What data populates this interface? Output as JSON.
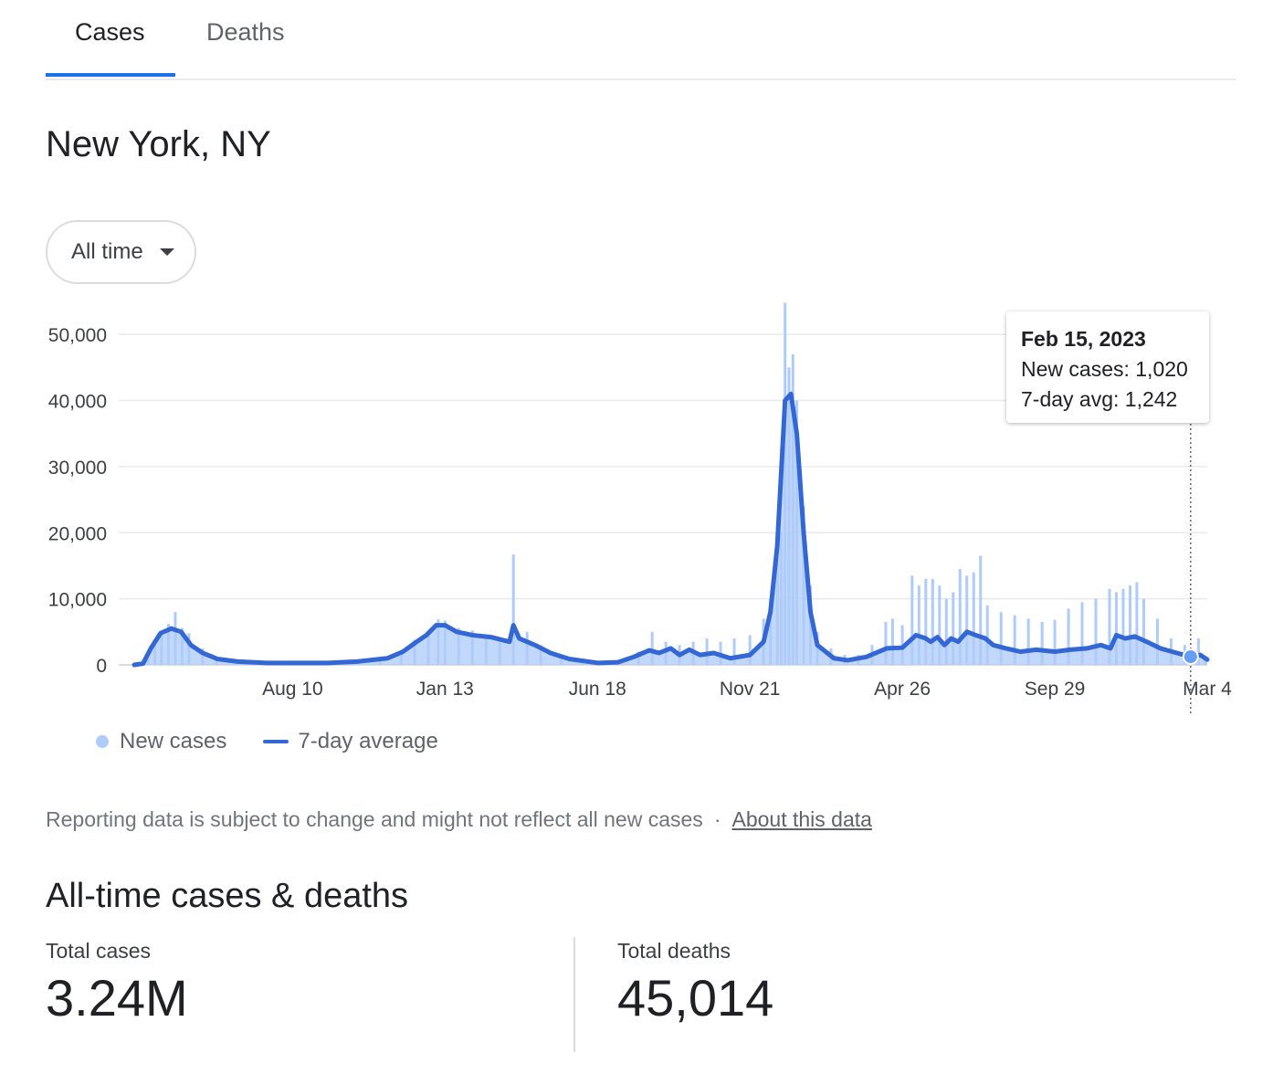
{
  "tabs": [
    {
      "label": "Cases",
      "active": true
    },
    {
      "label": "Deaths",
      "active": false
    }
  ],
  "location": "New York, NY",
  "range_selector": {
    "selected": "All time"
  },
  "legend": {
    "new_cases": "New cases",
    "avg": "7-day average"
  },
  "tooltip": {
    "date": "Feb 15, 2023",
    "new_cases": "New cases: 1,020",
    "avg": "7-day avg: 1,242"
  },
  "note": {
    "text": "Reporting data is subject to change and might not reflect all new cases",
    "separator": "·",
    "link": "About this data"
  },
  "all_time": {
    "title": "All-time cases & deaths",
    "total_cases_label": "Total cases",
    "total_cases_value": "3.24M",
    "total_deaths_label": "Total deaths",
    "total_deaths_value": "45,014"
  },
  "colors": {
    "bars": "#aecbfa",
    "line": "#3367d6",
    "active_tab": "#1a73e8",
    "gridline": "#e8eaed"
  },
  "chart_data": {
    "type": "bar",
    "overlay": "line",
    "x_range": [
      "2020-03-01",
      "2023-03-04"
    ],
    "ylim": [
      0,
      55000
    ],
    "grid": true,
    "y_ticks": [
      {
        "value": 0,
        "label": "0"
      },
      {
        "value": 10000,
        "label": "10,000"
      },
      {
        "value": 20000,
        "label": "20,000"
      },
      {
        "value": 30000,
        "label": "30,000"
      },
      {
        "value": 40000,
        "label": "40,000"
      },
      {
        "value": 50000,
        "label": "50,000"
      }
    ],
    "x_ticks": [
      {
        "date": "2020-08-10",
        "label": "Aug 10"
      },
      {
        "date": "2021-01-13",
        "label": "Jan 13"
      },
      {
        "date": "2021-06-18",
        "label": "Jun 18"
      },
      {
        "date": "2021-11-21",
        "label": "Nov 21"
      },
      {
        "date": "2022-04-26",
        "label": "Apr 26"
      },
      {
        "date": "2022-09-29",
        "label": "Sep 29"
      },
      {
        "date": "2023-03-04",
        "label": "Mar 4"
      }
    ],
    "series": [
      {
        "name": "New cases",
        "kind": "bar",
        "points": [
          [
            "2020-03-15",
            800
          ],
          [
            "2020-03-22",
            3500
          ],
          [
            "2020-03-29",
            5200
          ],
          [
            "2020-04-05",
            6200
          ],
          [
            "2020-04-12",
            8000
          ],
          [
            "2020-04-19",
            5600
          ],
          [
            "2020-04-26",
            4800
          ],
          [
            "2020-05-10",
            2500
          ],
          [
            "2020-05-24",
            1300
          ],
          [
            "2020-06-14",
            700
          ],
          [
            "2020-07-12",
            400
          ],
          [
            "2020-08-10",
            350
          ],
          [
            "2020-09-13",
            400
          ],
          [
            "2020-10-11",
            600
          ],
          [
            "2020-11-08",
            1200
          ],
          [
            "2020-11-29",
            2200
          ],
          [
            "2020-12-13",
            3800
          ],
          [
            "2020-12-27",
            5000
          ],
          [
            "2021-01-06",
            6900
          ],
          [
            "2021-01-13",
            6700
          ],
          [
            "2021-01-27",
            5600
          ],
          [
            "2021-02-10",
            5200
          ],
          [
            "2021-02-24",
            4500
          ],
          [
            "2021-03-10",
            4000
          ],
          [
            "2021-03-24",
            16700
          ],
          [
            "2021-04-07",
            5000
          ],
          [
            "2021-04-21",
            3000
          ],
          [
            "2021-05-12",
            1200
          ],
          [
            "2021-06-02",
            600
          ],
          [
            "2021-06-18",
            300
          ],
          [
            "2021-07-09",
            500
          ],
          [
            "2021-07-30",
            2000
          ],
          [
            "2021-08-13",
            5000
          ],
          [
            "2021-08-27",
            3500
          ],
          [
            "2021-09-10",
            3000
          ],
          [
            "2021-09-24",
            3500
          ],
          [
            "2021-10-08",
            4000
          ],
          [
            "2021-10-22",
            3500
          ],
          [
            "2021-11-05",
            4000
          ],
          [
            "2021-11-21",
            4500
          ],
          [
            "2021-12-05",
            7000
          ],
          [
            "2021-12-12",
            10000
          ],
          [
            "2021-12-19",
            18000
          ],
          [
            "2021-12-23",
            20000
          ],
          [
            "2021-12-27",
            54800
          ],
          [
            "2021-12-31",
            45000
          ],
          [
            "2022-01-04",
            47000
          ],
          [
            "2022-01-08",
            40000
          ],
          [
            "2022-01-15",
            24000
          ],
          [
            "2022-01-22",
            12000
          ],
          [
            "2022-01-29",
            5000
          ],
          [
            "2022-02-12",
            2500
          ],
          [
            "2022-02-26",
            1500
          ],
          [
            "2022-03-12",
            1500
          ],
          [
            "2022-03-26",
            3000
          ],
          [
            "2022-04-09",
            6500
          ],
          [
            "2022-04-16",
            7000
          ],
          [
            "2022-04-26",
            6000
          ],
          [
            "2022-05-06",
            13500
          ],
          [
            "2022-05-13",
            12000
          ],
          [
            "2022-05-20",
            13000
          ],
          [
            "2022-05-27",
            13000
          ],
          [
            "2022-06-03",
            12000
          ],
          [
            "2022-06-10",
            10000
          ],
          [
            "2022-06-17",
            11000
          ],
          [
            "2022-06-24",
            14500
          ],
          [
            "2022-07-01",
            13500
          ],
          [
            "2022-07-08",
            14000
          ],
          [
            "2022-07-15",
            16500
          ],
          [
            "2022-07-22",
            9000
          ],
          [
            "2022-08-05",
            8000
          ],
          [
            "2022-08-19",
            7500
          ],
          [
            "2022-09-02",
            7000
          ],
          [
            "2022-09-16",
            6500
          ],
          [
            "2022-09-29",
            6800
          ],
          [
            "2022-10-13",
            8500
          ],
          [
            "2022-10-27",
            9500
          ],
          [
            "2022-11-10",
            10000
          ],
          [
            "2022-11-24",
            11500
          ],
          [
            "2022-12-01",
            11000
          ],
          [
            "2022-12-08",
            11500
          ],
          [
            "2022-12-15",
            12000
          ],
          [
            "2022-12-22",
            12500
          ],
          [
            "2022-12-29",
            10000
          ],
          [
            "2023-01-12",
            7000
          ],
          [
            "2023-01-26",
            4000
          ],
          [
            "2023-02-09",
            3000
          ],
          [
            "2023-02-15",
            1020
          ],
          [
            "2023-02-23",
            4000
          ],
          [
            "2023-03-02",
            1000
          ]
        ]
      },
      {
        "name": "7-day average",
        "kind": "line",
        "points": [
          [
            "2020-03-01",
            0
          ],
          [
            "2020-03-10",
            200
          ],
          [
            "2020-03-18",
            2500
          ],
          [
            "2020-03-28",
            4800
          ],
          [
            "2020-04-08",
            5500
          ],
          [
            "2020-04-18",
            5000
          ],
          [
            "2020-04-28",
            3000
          ],
          [
            "2020-05-10",
            1800
          ],
          [
            "2020-05-25",
            900
          ],
          [
            "2020-06-15",
            500
          ],
          [
            "2020-07-15",
            300
          ],
          [
            "2020-08-10",
            300
          ],
          [
            "2020-09-15",
            300
          ],
          [
            "2020-10-15",
            500
          ],
          [
            "2020-11-15",
            1000
          ],
          [
            "2020-12-01",
            2000
          ],
          [
            "2020-12-15",
            3500
          ],
          [
            "2020-12-25",
            4500
          ],
          [
            "2021-01-04",
            6000
          ],
          [
            "2021-01-13",
            6000
          ],
          [
            "2021-01-25",
            5000
          ],
          [
            "2021-02-10",
            4500
          ],
          [
            "2021-03-01",
            4200
          ],
          [
            "2021-03-20",
            3500
          ],
          [
            "2021-03-24",
            6000
          ],
          [
            "2021-03-30",
            4000
          ],
          [
            "2021-04-15",
            3000
          ],
          [
            "2021-05-01",
            1800
          ],
          [
            "2021-05-20",
            900
          ],
          [
            "2021-06-18",
            300
          ],
          [
            "2021-07-09",
            400
          ],
          [
            "2021-07-25",
            1200
          ],
          [
            "2021-08-10",
            2200
          ],
          [
            "2021-08-20",
            1800
          ],
          [
            "2021-09-01",
            2500
          ],
          [
            "2021-09-10",
            1500
          ],
          [
            "2021-09-20",
            2300
          ],
          [
            "2021-10-01",
            1500
          ],
          [
            "2021-10-15",
            1800
          ],
          [
            "2021-11-01",
            1000
          ],
          [
            "2021-11-21",
            1500
          ],
          [
            "2021-12-05",
            3500
          ],
          [
            "2021-12-12",
            8000
          ],
          [
            "2021-12-19",
            18000
          ],
          [
            "2021-12-27",
            40000
          ],
          [
            "2022-01-02",
            41000
          ],
          [
            "2022-01-08",
            35000
          ],
          [
            "2022-01-15",
            20000
          ],
          [
            "2022-01-22",
            8000
          ],
          [
            "2022-01-29",
            3000
          ],
          [
            "2022-02-15",
            1000
          ],
          [
            "2022-03-01",
            700
          ],
          [
            "2022-03-20",
            1200
          ],
          [
            "2022-04-10",
            2500
          ],
          [
            "2022-04-26",
            2600
          ],
          [
            "2022-05-10",
            4500
          ],
          [
            "2022-05-20",
            4000
          ],
          [
            "2022-05-25",
            3500
          ],
          [
            "2022-06-01",
            4200
          ],
          [
            "2022-06-08",
            3000
          ],
          [
            "2022-06-15",
            4000
          ],
          [
            "2022-06-22",
            3500
          ],
          [
            "2022-07-01",
            5000
          ],
          [
            "2022-07-10",
            4500
          ],
          [
            "2022-07-20",
            4000
          ],
          [
            "2022-07-28",
            3000
          ],
          [
            "2022-08-10",
            2500
          ],
          [
            "2022-08-25",
            2000
          ],
          [
            "2022-09-10",
            2300
          ],
          [
            "2022-09-29",
            2000
          ],
          [
            "2022-10-15",
            2300
          ],
          [
            "2022-11-01",
            2500
          ],
          [
            "2022-11-15",
            3000
          ],
          [
            "2022-11-25",
            2500
          ],
          [
            "2022-12-01",
            4500
          ],
          [
            "2022-12-10",
            4000
          ],
          [
            "2022-12-20",
            4300
          ],
          [
            "2023-01-01",
            3500
          ],
          [
            "2023-01-15",
            2500
          ],
          [
            "2023-02-01",
            1800
          ],
          [
            "2023-02-15",
            1242
          ],
          [
            "2023-02-25",
            1500
          ],
          [
            "2023-03-04",
            800
          ]
        ]
      }
    ],
    "highlight": {
      "date": "2023-02-15",
      "value": 1242
    }
  }
}
